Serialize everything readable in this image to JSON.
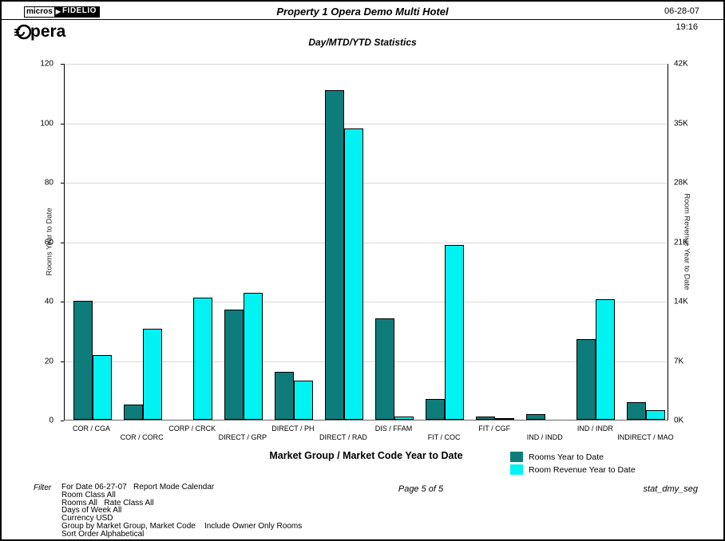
{
  "header": {
    "logo_micros": "micros",
    "logo_fidelio": "FIDELIO",
    "logo_opera_text": "pera",
    "title": "Property 1 Opera Demo Multi Hotel",
    "date": "06-28-07",
    "time": "19:16",
    "report_title": "Day/MTD/YTD Statistics"
  },
  "chart_data": {
    "type": "bar",
    "title": "Day/MTD/YTD Statistics",
    "xlabel": "Market Group / Market Code Year to Date",
    "grid": true,
    "legend_position": "bottom-right",
    "left_axis": {
      "label": "Rooms Year to Date",
      "min": 0,
      "max": 120,
      "ticks": [
        "0",
        "20",
        "40",
        "60",
        "80",
        "100",
        "120"
      ]
    },
    "right_axis": {
      "label": "Room Revenue Year to Date",
      "min": 0,
      "max": 42,
      "ticks": [
        "0K",
        "7K",
        "14K",
        "21K",
        "28K",
        "35K",
        "42K"
      ]
    },
    "categories": [
      "COR / CGA",
      "COR / CORC",
      "CORP / CRCK",
      "DIRECT / GRP",
      "DIRECT / PH",
      "DIRECT / RAD",
      "DIS / FFAM",
      "FIT / COC",
      "FIT / CGF",
      "IND / INDD",
      "IND / INDR",
      "INDIRECT / MAO"
    ],
    "series": [
      {
        "name": "Rooms Year to Date",
        "axis": "left",
        "color": "#0f7c7c",
        "values": [
          40,
          5,
          0,
          37,
          16,
          111,
          34,
          7,
          1,
          2,
          27,
          6
        ]
      },
      {
        "name": "Room Revenue Year to Date",
        "axis": "right",
        "color": "#00f2f2",
        "values": [
          7.6,
          10.7,
          14.4,
          14.9,
          4.6,
          34.3,
          0.4,
          20.6,
          0.1,
          0,
          14.2,
          1.1
        ]
      }
    ]
  },
  "footer": {
    "filter_label": "Filter",
    "filter_lines": [
      "For Date 06-27-07   Report Mode Calendar",
      "Room Class All",
      "Rooms All   Rate Class All",
      "Days of Week All",
      "Currency USD",
      "Group by Market Group, Market Code    Include Owner Only Rooms",
      "Sort Order Alphabetical"
    ],
    "page_number": "Page 5 of 5",
    "report_id": "stat_dmy_seg"
  }
}
